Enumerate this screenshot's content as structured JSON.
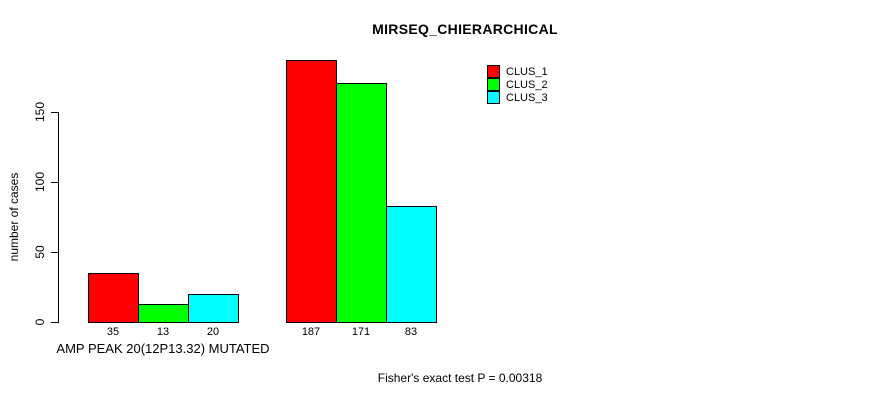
{
  "chart_data": {
    "type": "bar",
    "title": "MIRSEQ_CHIERARCHICAL",
    "ylabel": "number of cases",
    "xlabel": "AMP PEAK 20(12P13.32) MUTATED",
    "categories": [
      "AMP PEAK 20(12P13.32) MUTATED",
      ""
    ],
    "series": [
      {
        "name": "CLUS_1",
        "color": "#FF0000",
        "values": [
          35,
          187
        ]
      },
      {
        "name": "CLUS_2",
        "color": "#00FF00",
        "values": [
          13,
          171
        ]
      },
      {
        "name": "CLUS_3",
        "color": "#00FFFF",
        "values": [
          20,
          83
        ]
      }
    ],
    "yticks": [
      0,
      50,
      100,
      150
    ],
    "ylim": [
      0,
      190
    ],
    "grid": false,
    "bar_value_labels": true,
    "legend_position": "top-right",
    "annotation": "Fisher's exact test P = 0.00318"
  }
}
